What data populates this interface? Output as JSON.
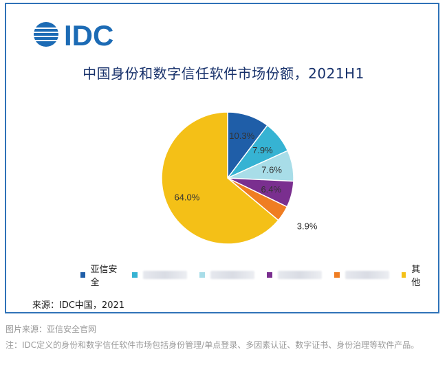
{
  "logo_text": "IDC",
  "chart_data": {
    "type": "pie",
    "title": "中国身份和数字信任软件市场份额，2021H1",
    "slices": [
      {
        "label": "亚信安全",
        "value": 10.3,
        "value_label": "10.3%",
        "color": "#1f5ea8"
      },
      {
        "label": "",
        "value": 7.9,
        "value_label": "7.9%",
        "color": "#36b3d3"
      },
      {
        "label": "",
        "value": 7.6,
        "value_label": "7.6%",
        "color": "#a8dde8"
      },
      {
        "label": "",
        "value": 6.4,
        "value_label": "6.4%",
        "color": "#7a2f8f"
      },
      {
        "label": "",
        "value": 3.9,
        "value_label": "3.9%",
        "color": "#ef7d22"
      },
      {
        "label": "其他",
        "value": 64.0,
        "value_label": "64.0%",
        "color": "#f4c017"
      }
    ],
    "legend_position": "bottom"
  },
  "source": "来源：IDC中国，2021",
  "caption": "图片来源：亚信安全官网",
  "note": "注：IDC定义的身份和数字信任软件市场包括身份管理/单点登录、多因素认证、数字证书、身份治理等软件产品。"
}
